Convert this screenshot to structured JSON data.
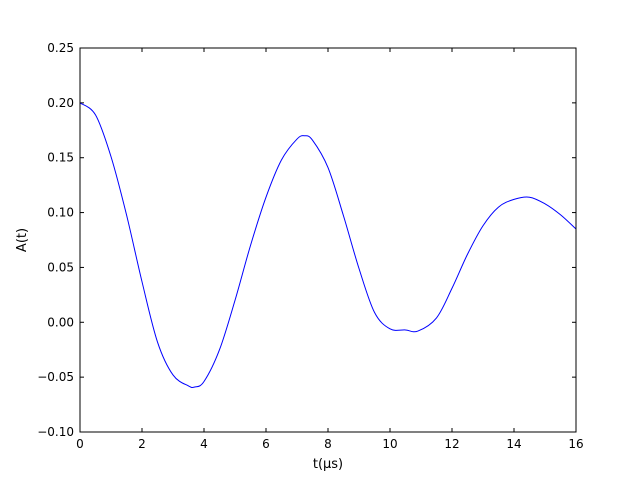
{
  "chart_data": {
    "type": "line",
    "title": "",
    "xlabel": "t(μs)",
    "ylabel": "A(t)",
    "xlim": [
      0,
      16
    ],
    "ylim": [
      -0.1,
      0.25
    ],
    "x_ticks": [
      0,
      2,
      4,
      6,
      8,
      10,
      12,
      14,
      16
    ],
    "x_tick_labels": [
      "0",
      "2",
      "4",
      "6",
      "8",
      "10",
      "12",
      "14",
      "16"
    ],
    "y_ticks": [
      -0.1,
      -0.05,
      0.0,
      0.05,
      0.1,
      0.15,
      0.2,
      0.25
    ],
    "y_tick_labels": [
      "−0.10",
      "−0.05",
      "0.00",
      "0.05",
      "0.10",
      "0.15",
      "0.20",
      "0.25"
    ],
    "grid": false,
    "series": [
      {
        "color": "#0000ff",
        "x": [
          0,
          0.5,
          1,
          1.5,
          2,
          2.5,
          3,
          3.5,
          3.7,
          4,
          4.5,
          5,
          5.5,
          6,
          6.5,
          7,
          7.25,
          7.5,
          8,
          8.5,
          9,
          9.5,
          10,
          10.5,
          10.9,
          11.5,
          12,
          12.5,
          13,
          13.5,
          14,
          14.5,
          15,
          15.5,
          16
        ],
        "y": [
          0.2,
          0.189,
          0.151,
          0.098,
          0.037,
          -0.018,
          -0.048,
          -0.058,
          -0.059,
          -0.054,
          -0.025,
          0.02,
          0.07,
          0.114,
          0.148,
          0.167,
          0.17,
          0.166,
          0.141,
          0.097,
          0.049,
          0.009,
          -0.006,
          -0.007,
          -0.008,
          0.004,
          0.031,
          0.062,
          0.088,
          0.105,
          0.112,
          0.114,
          0.108,
          0.098,
          0.085
        ]
      }
    ]
  }
}
